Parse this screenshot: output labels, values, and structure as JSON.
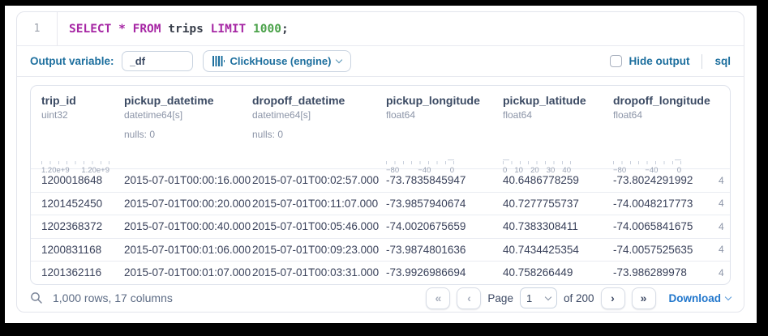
{
  "colors": {
    "histogram_teal": "#17806b",
    "label_blue": "#1d6f9e",
    "link_blue": "#2277cc",
    "keyword_purple": "#a626a4",
    "number_green": "#4ba24a",
    "header_navy": "#3b4a63"
  },
  "editor": {
    "line_number": "1",
    "tokens": [
      {
        "text": "SELECT",
        "style": "keyword"
      },
      {
        "text": " * ",
        "style": "keyword"
      },
      {
        "text": "FROM",
        "style": "keyword"
      },
      {
        "text": " trips ",
        "style": "plain"
      },
      {
        "text": "LIMIT",
        "style": "keyword"
      },
      {
        "text": " 1000",
        "style": "number"
      },
      {
        "text": ";",
        "style": "plain"
      }
    ]
  },
  "options": {
    "output_variable_label": "Output variable:",
    "output_variable_value": "_df",
    "engine_label": "ClickHouse (engine)",
    "hide_output_label": "Hide output",
    "language_label": "sql"
  },
  "table": {
    "columns": [
      {
        "name": "trip_id",
        "type": "uint32",
        "histogram": {
          "type": "bar",
          "bars": [
            100,
            72,
            95,
            93,
            70,
            80,
            88,
            55
          ],
          "tick_labels": [
            "1.20e+9",
            "1.20e+9"
          ]
        }
      },
      {
        "name": "pickup_datetime",
        "type": "datetime64[s]",
        "nulls": "nulls: 0"
      },
      {
        "name": "dropoff_datetime",
        "type": "datetime64[s]",
        "nulls": "nulls: 0"
      },
      {
        "name": "pickup_longitude",
        "type": "float64",
        "histogram": {
          "type": "bar",
          "bars": [
            95,
            0,
            0,
            0,
            0,
            0,
            0,
            0,
            0,
            10
          ],
          "tick_labels": [
            "−80",
            "−40",
            "0"
          ]
        }
      },
      {
        "name": "pickup_latitude",
        "type": "float64",
        "histogram": {
          "type": "bar",
          "bars": [
            10,
            0,
            0,
            0,
            0,
            0,
            0,
            0,
            0,
            95
          ],
          "tick_labels": [
            "0",
            "10",
            "20",
            "30",
            "40"
          ]
        }
      },
      {
        "name": "dropoff_longitude",
        "type": "float64",
        "histogram": {
          "type": "bar",
          "bars": [
            95,
            0,
            0,
            0,
            0,
            0,
            0,
            0,
            0,
            10
          ],
          "tick_labels": [
            "−80",
            "−40",
            "0"
          ]
        }
      }
    ],
    "rows": [
      [
        "1200018648",
        "2015-07-01T00:00:16.000",
        "2015-07-01T00:02:57.000",
        "-73.7835845947",
        "40.6486778259",
        "-73.8024291992"
      ],
      [
        "1201452450",
        "2015-07-01T00:00:20.000",
        "2015-07-01T00:11:07.000",
        "-73.9857940674",
        "40.7277755737",
        "-74.0048217773"
      ],
      [
        "1202368372",
        "2015-07-01T00:00:40.000",
        "2015-07-01T00:05:46.000",
        "-74.0020675659",
        "40.7383308411",
        "-74.0065841675"
      ],
      [
        "1200831168",
        "2015-07-01T00:01:06.000",
        "2015-07-01T00:09:23.000",
        "-73.9874801636",
        "40.7434425354",
        "-74.0057525635"
      ],
      [
        "1201362116",
        "2015-07-01T00:01:07.000",
        "2015-07-01T00:03:31.000",
        "-73.9926986694",
        "40.758266449",
        "-73.986289978"
      ]
    ],
    "clipped_text": "4"
  },
  "footer": {
    "summary": "1,000 rows, 17 columns",
    "first_page_glyph": "«",
    "prev_page_glyph": "‹",
    "page_label": "Page",
    "page_value": "1",
    "of_label": "of 200",
    "next_page_glyph": "›",
    "last_page_glyph": "»",
    "download_label": "Download"
  }
}
